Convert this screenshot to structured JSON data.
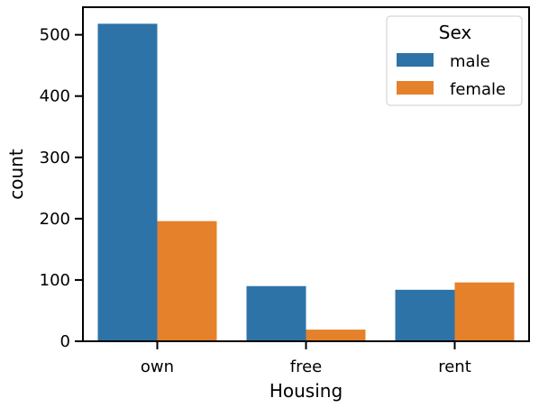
{
  "chart_data": {
    "type": "bar",
    "categories": [
      "own",
      "free",
      "rent"
    ],
    "series": [
      {
        "name": "male",
        "values": [
          518,
          90,
          84
        ],
        "color": "#2e73a8"
      },
      {
        "name": "female",
        "values": [
          196,
          19,
          96
        ],
        "color": "#e5812b"
      }
    ],
    "xlabel": "Housing",
    "ylabel": "count",
    "ylim": [
      0,
      545
    ],
    "yticks": [
      0,
      100,
      200,
      300,
      400,
      500
    ],
    "grid": false,
    "legend": {
      "title": "Sex",
      "placement": "top-right"
    }
  }
}
